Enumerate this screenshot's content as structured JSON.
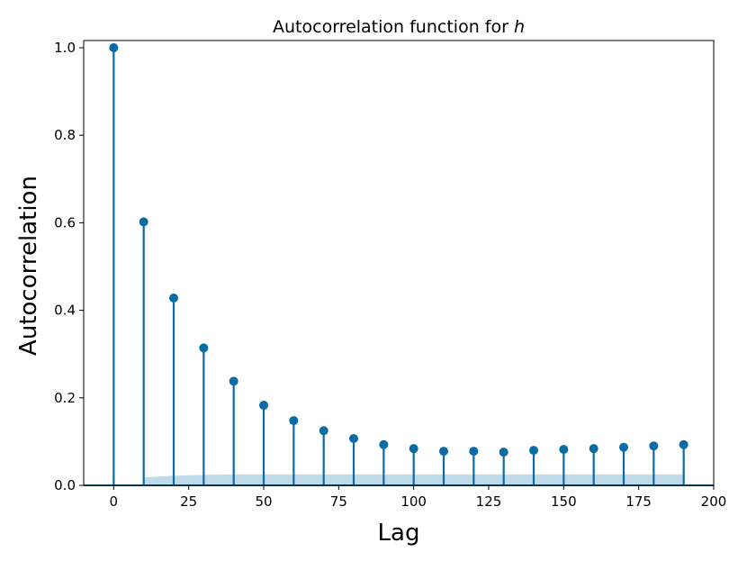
{
  "chart_data": {
    "type": "stem",
    "title": "Autocorrelation function for ",
    "title_var": "h",
    "xlabel": "Lag",
    "ylabel": "Autocorrelation",
    "xlim": [
      -10,
      200
    ],
    "ylim": [
      0.0,
      1.0
    ],
    "x_ticks": [
      0,
      25,
      50,
      75,
      100,
      125,
      150,
      175,
      200
    ],
    "x_tick_labels": [
      "0",
      "25",
      "50",
      "75",
      "100",
      "125",
      "150",
      "175",
      "200"
    ],
    "y_ticks": [
      0.0,
      0.2,
      0.4,
      0.6,
      0.8,
      1.0
    ],
    "y_tick_labels": [
      "0.0",
      "0.2",
      "0.4",
      "0.6",
      "0.8",
      "1.0"
    ],
    "grid": false,
    "marker_color": "#0a6ba5",
    "confidence_band_color": "#a9cfe3",
    "confidence_band": {
      "x": [
        10,
        20,
        30,
        40,
        50,
        60,
        70,
        80,
        90,
        100,
        110,
        120,
        130,
        140,
        150,
        160,
        170,
        180,
        190
      ],
      "upper": [
        0.018,
        0.022,
        0.024,
        0.025,
        0.025,
        0.025,
        0.025,
        0.025,
        0.025,
        0.025,
        0.025,
        0.025,
        0.025,
        0.025,
        0.025,
        0.025,
        0.025,
        0.025,
        0.025
      ]
    },
    "lags": [
      0,
      10,
      20,
      30,
      40,
      50,
      60,
      70,
      80,
      90,
      100,
      110,
      120,
      130,
      140,
      150,
      160,
      170,
      180,
      190
    ],
    "values": [
      1.0,
      0.602,
      0.428,
      0.314,
      0.238,
      0.183,
      0.148,
      0.125,
      0.107,
      0.093,
      0.084,
      0.078,
      0.078,
      0.076,
      0.08,
      0.082,
      0.084,
      0.087,
      0.09,
      0.093
    ]
  }
}
